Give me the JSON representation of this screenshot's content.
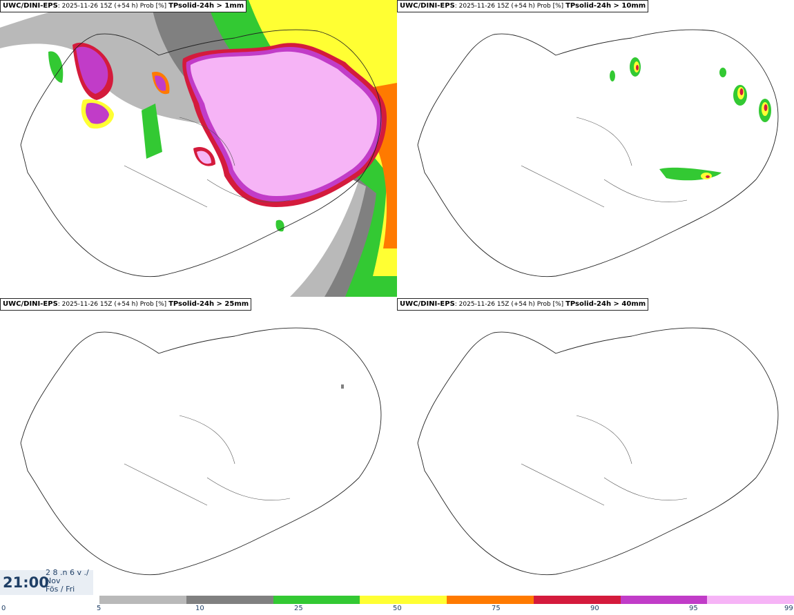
{
  "panels": [
    {
      "model": "UWC/DINI-EPS",
      "run": "2025-11-26 15Z (+54 h) Prob [%]",
      "param": "TPsolid-24h > 1mm"
    },
    {
      "model": "UWC/DINI-EPS",
      "run": "2025-11-26 15Z (+54 h) Prob [%]",
      "param": "TPsolid-24h > 10mm"
    },
    {
      "model": "UWC/DINI-EPS",
      "run": "2025-11-26 15Z (+54 h) Prob [%]",
      "param": "TPsolid-24h > 25mm"
    },
    {
      "model": "UWC/DINI-EPS",
      "run": "2025-11-26 15Z (+54 h) Prob [%]",
      "param": "TPsolid-24h > 40mm"
    }
  ],
  "valid_time": {
    "time": "21:00",
    "date_line1": "2 8 .n 6 v ./",
    "date_line2": "Nov",
    "date_line3": "Fös / Fri"
  },
  "legend": {
    "colors": [
      "#b9b9b9",
      "#808080",
      "#33c933",
      "#ffff33",
      "#ff7a00",
      "#d41b3c",
      "#c13cc8",
      "#f6b4f6"
    ],
    "ticks": [
      "0",
      "5",
      "10",
      "25",
      "50",
      "75",
      "90",
      "95",
      "99"
    ]
  }
}
